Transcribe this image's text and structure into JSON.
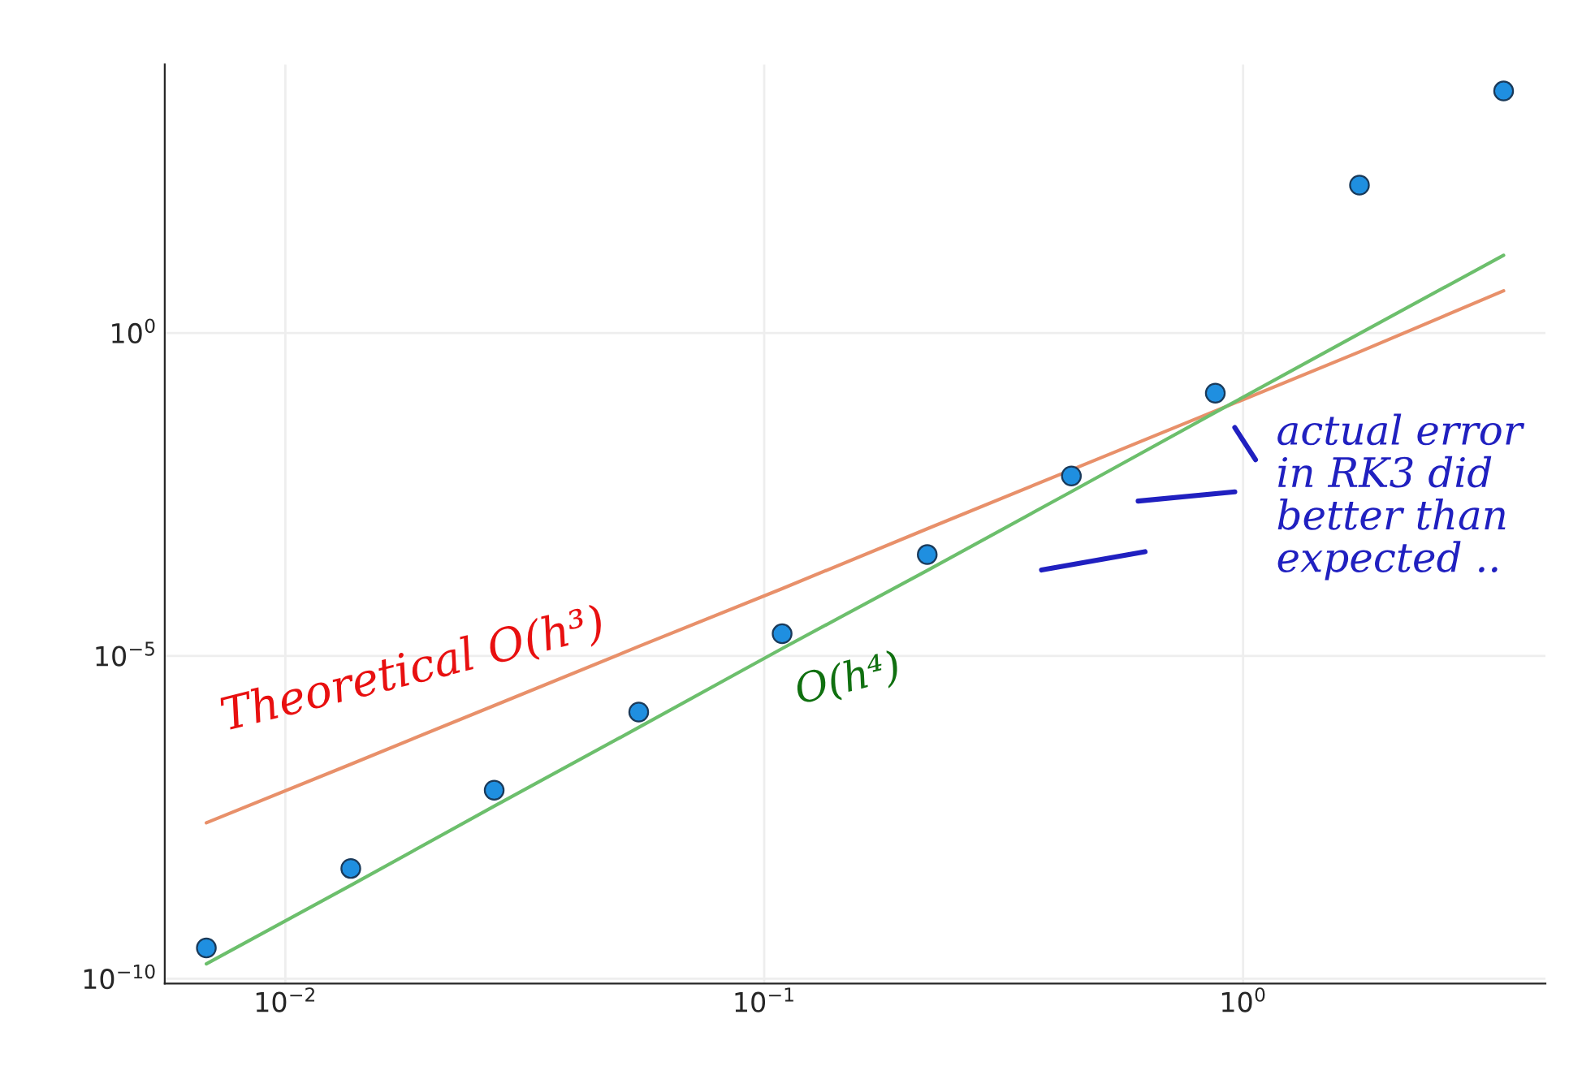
{
  "chart_data": {
    "type": "scatter",
    "log": "xy",
    "grid": true,
    "x": [
      0.00684,
      0.0137,
      0.0273,
      0.0547,
      0.109,
      0.219,
      0.438,
      0.875,
      1.75,
      3.5
    ],
    "series": [
      {
        "marker": "circle",
        "color": "#1f8fe0",
        "values": [
          3e-10,
          5.1e-09,
          8.3e-08,
          1.35e-06,
          2.2e-05,
          0.00037,
          0.0061,
          0.117,
          195,
          5600
        ]
      },
      {
        "type": "line",
        "color": "#e8906a",
        "values": [
          2.6e-08,
          2.1e-07,
          1.7e-06,
          1.4e-05,
          0.00011,
          0.00093,
          0.0076,
          0.062,
          0.51,
          4.5
        ]
      },
      {
        "type": "line",
        "color": "#6cbf6c",
        "values": [
          1.7e-10,
          2.8e-09,
          4.7e-08,
          7.8e-07,
          1.3e-05,
          0.00021,
          0.0035,
          0.059,
          0.98,
          16
        ]
      }
    ],
    "xlim": [
      0.0056,
      4.28
    ],
    "ylim": [
      8.4e-11,
      14400
    ],
    "xticks": [
      {
        "value": 0.01,
        "label": "10$^{−2}$"
      },
      {
        "value": 0.1,
        "label": "10$^{−1}$"
      },
      {
        "value": 1,
        "label": "10$^{0}$"
      }
    ],
    "yticks": [
      {
        "value": 1e-10,
        "label": "10$^{−10}$"
      },
      {
        "value": 1e-05,
        "label": "10$^{−5}$"
      },
      {
        "value": 1,
        "label": "10$^{0}$"
      }
    ],
    "annotations": [
      "Theoretical O(h³)",
      "O(h⁴)",
      "actual error\nin RK3 did\nbetter than\nexpected .."
    ]
  }
}
